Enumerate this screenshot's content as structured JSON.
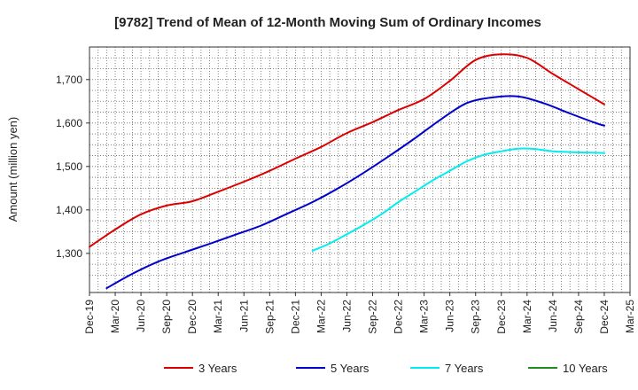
{
  "chart_data": {
    "type": "line",
    "title": "[9782]  Trend of Mean of 12-Month Moving Sum of Ordinary Incomes",
    "xlabel": "",
    "ylabel": "Amount (million yen)",
    "ylim": [
      1210,
      1775
    ],
    "yticks": [
      1300,
      1400,
      1500,
      1600,
      1700
    ],
    "ytick_labels": [
      "1,300",
      "1,400",
      "1,500",
      "1,600",
      "1,700"
    ],
    "xticks": [
      "Dec-19",
      "Mar-20",
      "Jun-20",
      "Sep-20",
      "Dec-20",
      "Mar-21",
      "Jun-21",
      "Sep-21",
      "Dec-21",
      "Mar-22",
      "Jun-22",
      "Sep-22",
      "Dec-22",
      "Mar-23",
      "Jun-23",
      "Sep-23",
      "Dec-23",
      "Mar-24",
      "Jun-24",
      "Sep-24",
      "Dec-24",
      "Mar-25"
    ],
    "x_unit": "months since Dec-19",
    "grid": true,
    "legend_position": "bottom",
    "series": [
      {
        "name": "3 Years",
        "color": "#dd0000",
        "x": [
          0,
          3,
          6,
          9,
          12,
          15,
          18,
          21,
          24,
          27,
          30,
          33,
          36,
          39,
          42,
          45,
          48,
          51,
          54,
          57,
          60
        ],
        "values": [
          1315,
          1355,
          1390,
          1410,
          1420,
          1442,
          1465,
          1490,
          1518,
          1545,
          1577,
          1602,
          1630,
          1655,
          1697,
          1745,
          1758,
          1750,
          1713,
          1678,
          1643
        ]
      },
      {
        "name": "5 Years",
        "color": "#0000cc",
        "x": [
          2,
          5,
          8,
          11,
          14,
          17,
          20,
          23,
          26,
          29,
          32,
          35,
          38,
          41,
          44,
          47,
          50,
          53,
          56,
          59,
          60
        ],
        "values": [
          1220,
          1253,
          1281,
          1302,
          1322,
          1343,
          1364,
          1391,
          1418,
          1450,
          1486,
          1525,
          1566,
          1609,
          1646,
          1659,
          1661,
          1645,
          1622,
          1600,
          1594
        ]
      },
      {
        "name": "7 Years",
        "color": "#00eeee",
        "x": [
          26,
          28,
          30,
          32,
          34,
          36,
          38,
          40,
          42,
          44,
          46,
          48,
          50,
          52,
          54,
          56,
          58,
          60
        ],
        "values": [
          1306,
          1323,
          1344,
          1366,
          1390,
          1418,
          1443,
          1468,
          1490,
          1512,
          1527,
          1535,
          1541,
          1540,
          1535,
          1533,
          1532,
          1531
        ]
      },
      {
        "name": "10 Years",
        "color": "#228b22",
        "x": [],
        "values": []
      }
    ]
  }
}
